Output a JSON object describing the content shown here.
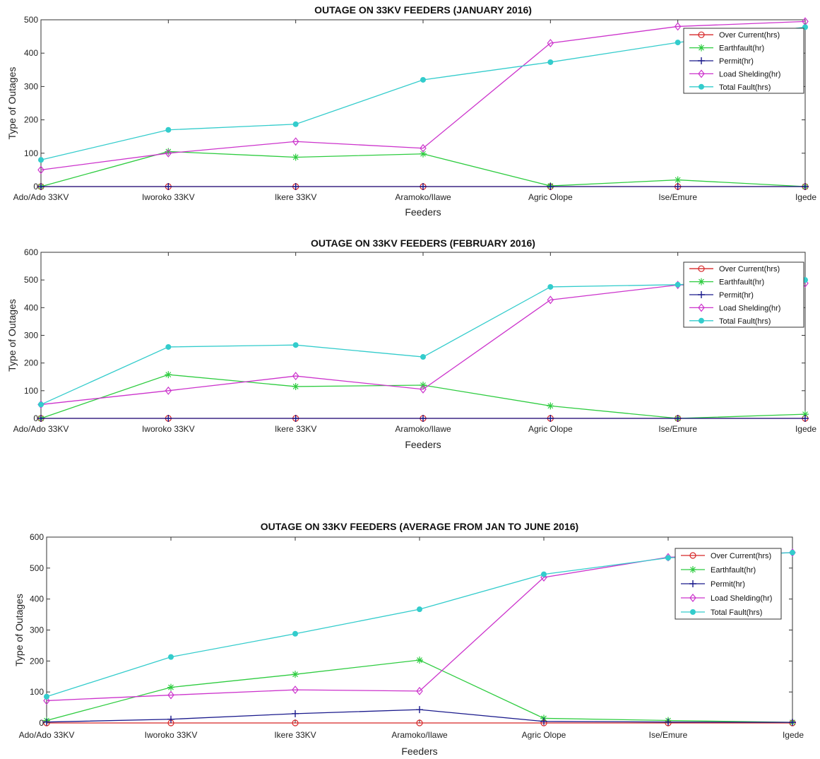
{
  "chart_data": [
    {
      "type": "line",
      "title": "OUTAGE ON 33KV FEEDERS (JANUARY 2016)",
      "xlabel": "Feeders",
      "ylabel": "Type of Outages",
      "categories": [
        "Ado/Ado 33KV",
        "Iworoko 33KV",
        "Ikere 33KV",
        "Aramoko/Ilawe",
        "Agric Olope",
        "Ise/Emure",
        "Igede"
      ],
      "ylim": [
        0,
        500
      ],
      "yticks": [
        0,
        100,
        200,
        300,
        400,
        500
      ],
      "legend_position": "top-right",
      "series": [
        {
          "name": "Over Current(hrs)",
          "color": "#d62728",
          "marker": "circle",
          "values": [
            0,
            0,
            0,
            0,
            0,
            0,
            0
          ]
        },
        {
          "name": "Earthfault(hr)",
          "color": "#2ecc40",
          "marker": "star",
          "values": [
            0,
            105,
            88,
            98,
            2,
            20,
            0
          ]
        },
        {
          "name": "Permit(hr)",
          "color": "#1a1a8c",
          "marker": "plus",
          "values": [
            0,
            0,
            0,
            0,
            0,
            0,
            0
          ]
        },
        {
          "name": "Load Shelding(hr)",
          "color": "#cc33cc",
          "marker": "diamond",
          "values": [
            50,
            100,
            135,
            115,
            430,
            480,
            495
          ]
        },
        {
          "name": "Total Fault(hrs)",
          "color": "#33cccc",
          "marker": "circle-filled",
          "values": [
            80,
            170,
            187,
            320,
            373,
            432,
            478
          ]
        }
      ]
    },
    {
      "type": "line",
      "title": "OUTAGE ON 33KV FEEDERS (FEBRUARY 2016)",
      "xlabel": "Feeders",
      "ylabel": "Type of Outages",
      "categories": [
        "Ado/Ado 33KV",
        "Iworoko 33KV",
        "Ikere 33KV",
        "Aramoko/Ilawe",
        "Agric Olope",
        "Ise/Emure",
        "Igede"
      ],
      "ylim": [
        0,
        600
      ],
      "yticks": [
        0,
        100,
        200,
        300,
        400,
        500,
        600
      ],
      "legend_position": "top-right",
      "series": [
        {
          "name": "Over Current(hrs)",
          "color": "#d62728",
          "marker": "circle",
          "values": [
            0,
            0,
            0,
            0,
            0,
            0,
            0
          ]
        },
        {
          "name": "Earthfault(hr)",
          "color": "#2ecc40",
          "marker": "star",
          "values": [
            0,
            158,
            115,
            120,
            45,
            0,
            15
          ]
        },
        {
          "name": "Permit(hr)",
          "color": "#1a1a8c",
          "marker": "plus",
          "values": [
            0,
            0,
            0,
            0,
            0,
            0,
            0
          ]
        },
        {
          "name": "Load Shelding(hr)",
          "color": "#cc33cc",
          "marker": "diamond",
          "values": [
            50,
            100,
            153,
            105,
            428,
            482,
            488
          ]
        },
        {
          "name": "Total Fault(hrs)",
          "color": "#33cccc",
          "marker": "circle-filled",
          "values": [
            50,
            258,
            265,
            222,
            475,
            483,
            500
          ]
        }
      ]
    },
    {
      "type": "line",
      "title": "OUTAGE ON 33KV FEEDERS (AVERAGE FROM JAN TO JUNE 2016)",
      "xlabel": "Feeders",
      "ylabel": "Type of Outages",
      "categories": [
        "Ado/Ado 33KV",
        "Iworoko 33KV",
        "Ikere 33KV",
        "Aramoko/Ilawe",
        "Agric Olope",
        "Ise/Emure",
        "Igede"
      ],
      "ylim": [
        0,
        600
      ],
      "yticks": [
        0,
        100,
        200,
        300,
        400,
        500,
        600
      ],
      "legend_position": "top-right",
      "series": [
        {
          "name": "Over Current(hrs)",
          "color": "#d62728",
          "marker": "circle",
          "values": [
            0,
            0,
            0,
            0,
            0,
            0,
            0
          ]
        },
        {
          "name": "Earthfault(hr)",
          "color": "#2ecc40",
          "marker": "star",
          "values": [
            8,
            115,
            157,
            203,
            15,
            8,
            2
          ]
        },
        {
          "name": "Permit(hr)",
          "color": "#1a1a8c",
          "marker": "plus",
          "values": [
            3,
            12,
            30,
            43,
            5,
            3,
            2
          ]
        },
        {
          "name": "Load Shelding(hr)",
          "color": "#cc33cc",
          "marker": "diamond",
          "values": [
            72,
            90,
            107,
            103,
            470,
            535,
            550
          ]
        },
        {
          "name": "Total Fault(hrs)",
          "color": "#33cccc",
          "marker": "circle-filled",
          "values": [
            85,
            213,
            288,
            367,
            480,
            533,
            550
          ]
        }
      ]
    }
  ]
}
